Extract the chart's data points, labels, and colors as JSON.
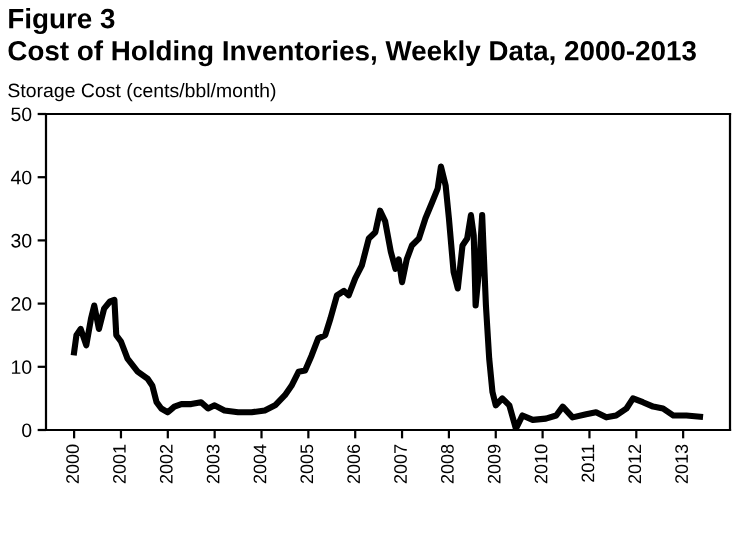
{
  "chart_data": {
    "type": "line",
    "title": "Figure 3",
    "subtitle": "Cost of Holding Inventories, Weekly Data, 2000-2013",
    "ylabel": "Storage Cost (cents/bbl/month)",
    "xlim": [
      1999.4,
      2014.0
    ],
    "xticks": [
      2000,
      2001,
      2002,
      2003,
      2004,
      2005,
      2006,
      2007,
      2008,
      2009,
      2010,
      2011,
      2012,
      2013
    ],
    "ylim": [
      0,
      50
    ],
    "yticks": [
      0,
      10,
      20,
      30,
      40,
      50
    ],
    "grid": false,
    "legend": false,
    "marker": "none",
    "line_style": "solid",
    "series": [
      {
        "color": "#000000",
        "x": [
          2000.0,
          2000.05,
          2000.14,
          2000.26,
          2000.36,
          2000.43,
          2000.53,
          2000.64,
          2000.76,
          2000.86,
          2000.9,
          2001.0,
          2001.14,
          2001.36,
          2001.57,
          2001.67,
          2001.76,
          2001.86,
          2002.0,
          2002.14,
          2002.29,
          2002.5,
          2002.71,
          2002.86,
          2003.0,
          2003.21,
          2003.5,
          2003.79,
          2004.07,
          2004.29,
          2004.5,
          2004.64,
          2004.79,
          2004.93,
          2005.07,
          2005.21,
          2005.36,
          2005.47,
          2005.61,
          2005.76,
          2005.86,
          2006.0,
          2006.14,
          2006.29,
          2006.43,
          2006.53,
          2006.64,
          2006.76,
          2006.86,
          2006.93,
          2007.0,
          2007.1,
          2007.21,
          2007.36,
          2007.5,
          2007.64,
          2007.76,
          2007.83,
          2007.93,
          2008.0,
          2008.1,
          2008.19,
          2008.29,
          2008.39,
          2008.47,
          2008.53,
          2008.57,
          2008.64,
          2008.71,
          2008.79,
          2008.86,
          2008.93,
          2009.0,
          2009.14,
          2009.29,
          2009.43,
          2009.57,
          2009.79,
          2010.07,
          2010.29,
          2010.43,
          2010.64,
          2010.93,
          2011.14,
          2011.36,
          2011.57,
          2011.79,
          2011.93,
          2012.14,
          2012.36,
          2012.57,
          2012.79,
          2013.07,
          2013.36
        ],
        "values": [
          12.3,
          15,
          16,
          13.4,
          17.6,
          19.7,
          16,
          19.2,
          20.3,
          20.6,
          15,
          14,
          11.3,
          9.2,
          8.1,
          7,
          4.4,
          3.4,
          2.8,
          3.7,
          4.1,
          4.1,
          4.4,
          3.4,
          3.9,
          3.1,
          2.8,
          2.8,
          3.1,
          3.9,
          5.5,
          7,
          9.2,
          9.4,
          11.8,
          14.5,
          15,
          17.6,
          21.3,
          22,
          21.3,
          24,
          26,
          30.3,
          31.3,
          34.7,
          33,
          28.2,
          25.5,
          27,
          23.4,
          27,
          29.2,
          30.3,
          33.5,
          36,
          38.2,
          41.7,
          38.7,
          33.5,
          25,
          22.4,
          29.2,
          30.3,
          34,
          30.8,
          19.7,
          25,
          34,
          19.7,
          11.3,
          6,
          3.9,
          5,
          3.9,
          0.2,
          2.3,
          1.6,
          1.8,
          2.3,
          3.7,
          2,
          2.5,
          2.8,
          2,
          2.3,
          3.4,
          5,
          4.4,
          3.7,
          3.4,
          2.3,
          2.3,
          2.1
        ]
      }
    ]
  }
}
